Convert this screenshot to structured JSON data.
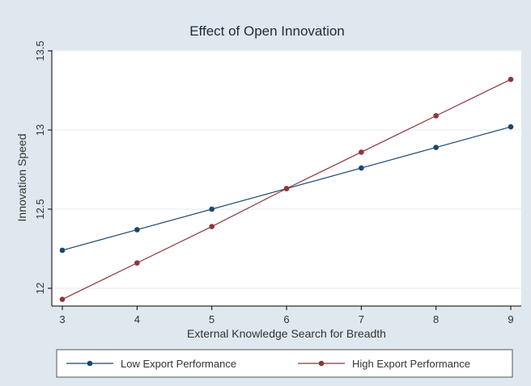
{
  "chart_data": {
    "type": "line",
    "title": "Effect of Open Innovation",
    "xlabel": "External Knowledge Search for Breadth",
    "ylabel": "Innovation Speed",
    "x": [
      3,
      4,
      5,
      6,
      7,
      8,
      9
    ],
    "xlim": [
      3,
      9
    ],
    "ylim": [
      12,
      13.5
    ],
    "xticks": [
      "3",
      "4",
      "5",
      "6",
      "7",
      "8",
      "9"
    ],
    "yticks": [
      "12",
      "12.5",
      "13",
      "13.5"
    ],
    "ytick_values": [
      12,
      12.5,
      13,
      13.5
    ],
    "grid": true,
    "legend_position": "bottom",
    "series": [
      {
        "name": "Low Export Performance",
        "color": "#1a476f",
        "values": [
          12.24,
          12.37,
          12.5,
          12.63,
          12.76,
          12.89,
          13.02
        ]
      },
      {
        "name": "High Export Performance",
        "color": "#90353b",
        "values": [
          11.93,
          12.16,
          12.39,
          12.63,
          12.86,
          13.09,
          13.32
        ]
      }
    ]
  }
}
